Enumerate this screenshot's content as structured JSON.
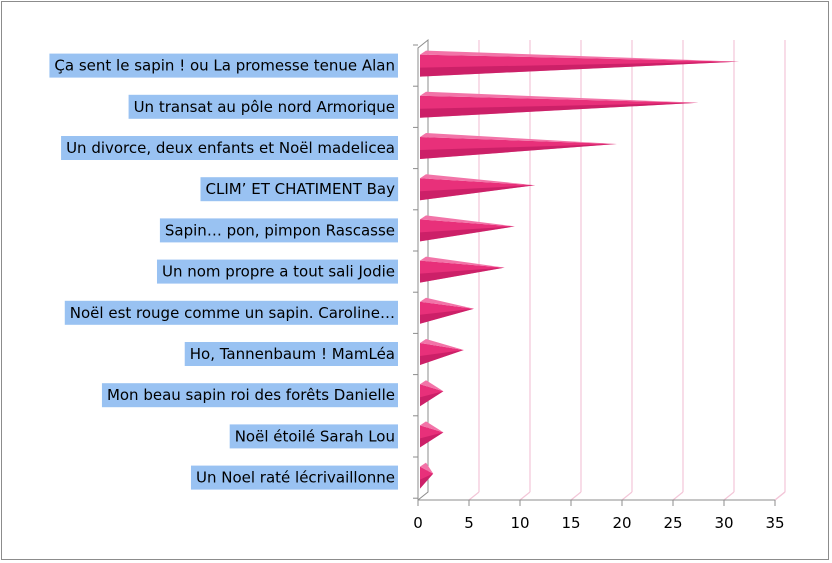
{
  "chart_data": {
    "type": "bar",
    "orientation": "horizontal",
    "categories": [
      "Ça sent le sapin ! ou La promesse tenue Alan",
      "Un transat au pôle nord Armorique",
      "Un divorce, deux enfants et Noël madelicea",
      "CLIM’ ET CHATIMENT Bay",
      "Sapin… pon, pimpon Rascasse",
      "Un nom propre a tout sali  Jodie",
      "Noël est rouge comme un sapin. Caroline…",
      "Ho, Tannenbaum ! MamLéa",
      "Mon beau sapin roi des forêts  Danielle",
      "Noël étoilé  Sarah Lou",
      "Un Noel raté  lécrivaillonne"
    ],
    "values": [
      31,
      27,
      19,
      11,
      9,
      8,
      5,
      4,
      2,
      2,
      1
    ],
    "xlim": [
      0,
      35
    ],
    "x_ticks": [
      "0",
      "5",
      "10",
      "15",
      "20",
      "25",
      "30",
      "35"
    ],
    "grid": true,
    "legend": "none",
    "colors": {
      "bar": "#e8307a",
      "bar_dark": "#b5145a",
      "bar_light": "#f274a8",
      "gridline": "#f3c6d8",
      "label_highlight": "#99c2f2",
      "axis": "#8c8c8c"
    }
  }
}
